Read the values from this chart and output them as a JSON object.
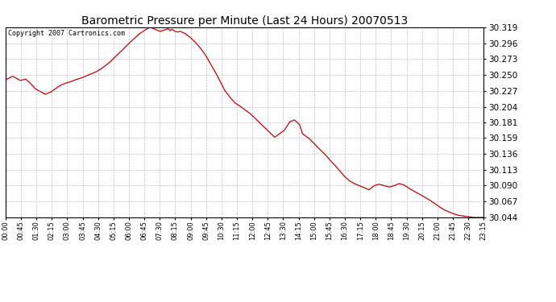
{
  "title": "Barometric Pressure per Minute (Last 24 Hours) 20070513",
  "copyright_text": "Copyright 2007 Cartronics.com",
  "line_color": "#cc0000",
  "background_color": "#ffffff",
  "plot_bg_color": "#ffffff",
  "grid_color": "#b0b0b0",
  "ylim": [
    30.044,
    30.319
  ],
  "yticks": [
    30.044,
    30.067,
    30.09,
    30.113,
    30.136,
    30.159,
    30.181,
    30.204,
    30.227,
    30.25,
    30.273,
    30.296,
    30.319
  ],
  "xtick_labels": [
    "00:00",
    "00:45",
    "01:30",
    "02:15",
    "03:00",
    "03:45",
    "04:30",
    "05:15",
    "06:00",
    "06:45",
    "07:30",
    "08:15",
    "09:00",
    "09:45",
    "10:30",
    "11:15",
    "12:00",
    "12:45",
    "13:30",
    "14:15",
    "15:00",
    "15:45",
    "16:30",
    "17:15",
    "18:00",
    "18:45",
    "19:30",
    "20:15",
    "21:00",
    "21:45",
    "22:30",
    "23:15"
  ],
  "waypoints": [
    [
      0.0,
      30.243
    ],
    [
      0.015,
      30.248
    ],
    [
      0.031,
      30.242
    ],
    [
      0.042,
      30.244
    ],
    [
      0.052,
      30.238
    ],
    [
      0.062,
      30.23
    ],
    [
      0.073,
      30.226
    ],
    [
      0.083,
      30.222
    ],
    [
      0.094,
      30.225
    ],
    [
      0.104,
      30.23
    ],
    [
      0.115,
      30.235
    ],
    [
      0.125,
      30.238
    ],
    [
      0.135,
      30.24
    ],
    [
      0.146,
      30.243
    ],
    [
      0.156,
      30.245
    ],
    [
      0.167,
      30.248
    ],
    [
      0.177,
      30.251
    ],
    [
      0.188,
      30.254
    ],
    [
      0.198,
      30.258
    ],
    [
      0.208,
      30.263
    ],
    [
      0.219,
      30.269
    ],
    [
      0.229,
      30.276
    ],
    [
      0.24,
      30.283
    ],
    [
      0.25,
      30.29
    ],
    [
      0.26,
      30.297
    ],
    [
      0.271,
      30.304
    ],
    [
      0.281,
      30.31
    ],
    [
      0.292,
      30.315
    ],
    [
      0.302,
      30.319
    ],
    [
      0.312,
      30.316
    ],
    [
      0.323,
      30.313
    ],
    [
      0.333,
      30.315
    ],
    [
      0.34,
      30.317
    ],
    [
      0.344,
      30.314
    ],
    [
      0.348,
      30.316
    ],
    [
      0.354,
      30.313
    ],
    [
      0.36,
      30.312
    ],
    [
      0.365,
      30.313
    ],
    [
      0.375,
      30.31
    ],
    [
      0.385,
      30.305
    ],
    [
      0.396,
      30.298
    ],
    [
      0.406,
      30.29
    ],
    [
      0.417,
      30.28
    ],
    [
      0.427,
      30.268
    ],
    [
      0.438,
      30.255
    ],
    [
      0.448,
      30.242
    ],
    [
      0.458,
      30.228
    ],
    [
      0.469,
      30.218
    ],
    [
      0.479,
      30.21
    ],
    [
      0.49,
      30.205
    ],
    [
      0.5,
      30.2
    ],
    [
      0.51,
      30.195
    ],
    [
      0.521,
      30.188
    ],
    [
      0.531,
      30.181
    ],
    [
      0.542,
      30.174
    ],
    [
      0.552,
      30.167
    ],
    [
      0.563,
      30.16
    ],
    [
      0.573,
      30.165
    ],
    [
      0.583,
      30.17
    ],
    [
      0.594,
      30.182
    ],
    [
      0.604,
      30.185
    ],
    [
      0.615,
      30.178
    ],
    [
      0.621,
      30.165
    ],
    [
      0.625,
      30.163
    ],
    [
      0.635,
      30.158
    ],
    [
      0.646,
      30.15
    ],
    [
      0.656,
      30.143
    ],
    [
      0.667,
      30.136
    ],
    [
      0.677,
      30.128
    ],
    [
      0.688,
      30.12
    ],
    [
      0.698,
      30.112
    ],
    [
      0.708,
      30.104
    ],
    [
      0.719,
      30.097
    ],
    [
      0.729,
      30.093
    ],
    [
      0.74,
      30.09
    ],
    [
      0.75,
      30.087
    ],
    [
      0.76,
      30.084
    ],
    [
      0.771,
      30.09
    ],
    [
      0.781,
      30.092
    ],
    [
      0.792,
      30.09
    ],
    [
      0.802,
      30.088
    ],
    [
      0.813,
      30.09
    ],
    [
      0.823,
      30.093
    ],
    [
      0.833,
      30.091
    ],
    [
      0.844,
      30.086
    ],
    [
      0.854,
      30.082
    ],
    [
      0.865,
      30.078
    ],
    [
      0.875,
      30.074
    ],
    [
      0.885,
      30.07
    ],
    [
      0.896,
      30.065
    ],
    [
      0.906,
      30.06
    ],
    [
      0.917,
      30.055
    ],
    [
      0.927,
      30.052
    ],
    [
      0.938,
      30.049
    ],
    [
      0.948,
      30.047
    ],
    [
      0.958,
      30.046
    ],
    [
      0.969,
      30.045
    ],
    [
      0.979,
      30.044
    ],
    [
      0.99,
      30.044
    ],
    [
      1.0,
      30.044
    ]
  ]
}
